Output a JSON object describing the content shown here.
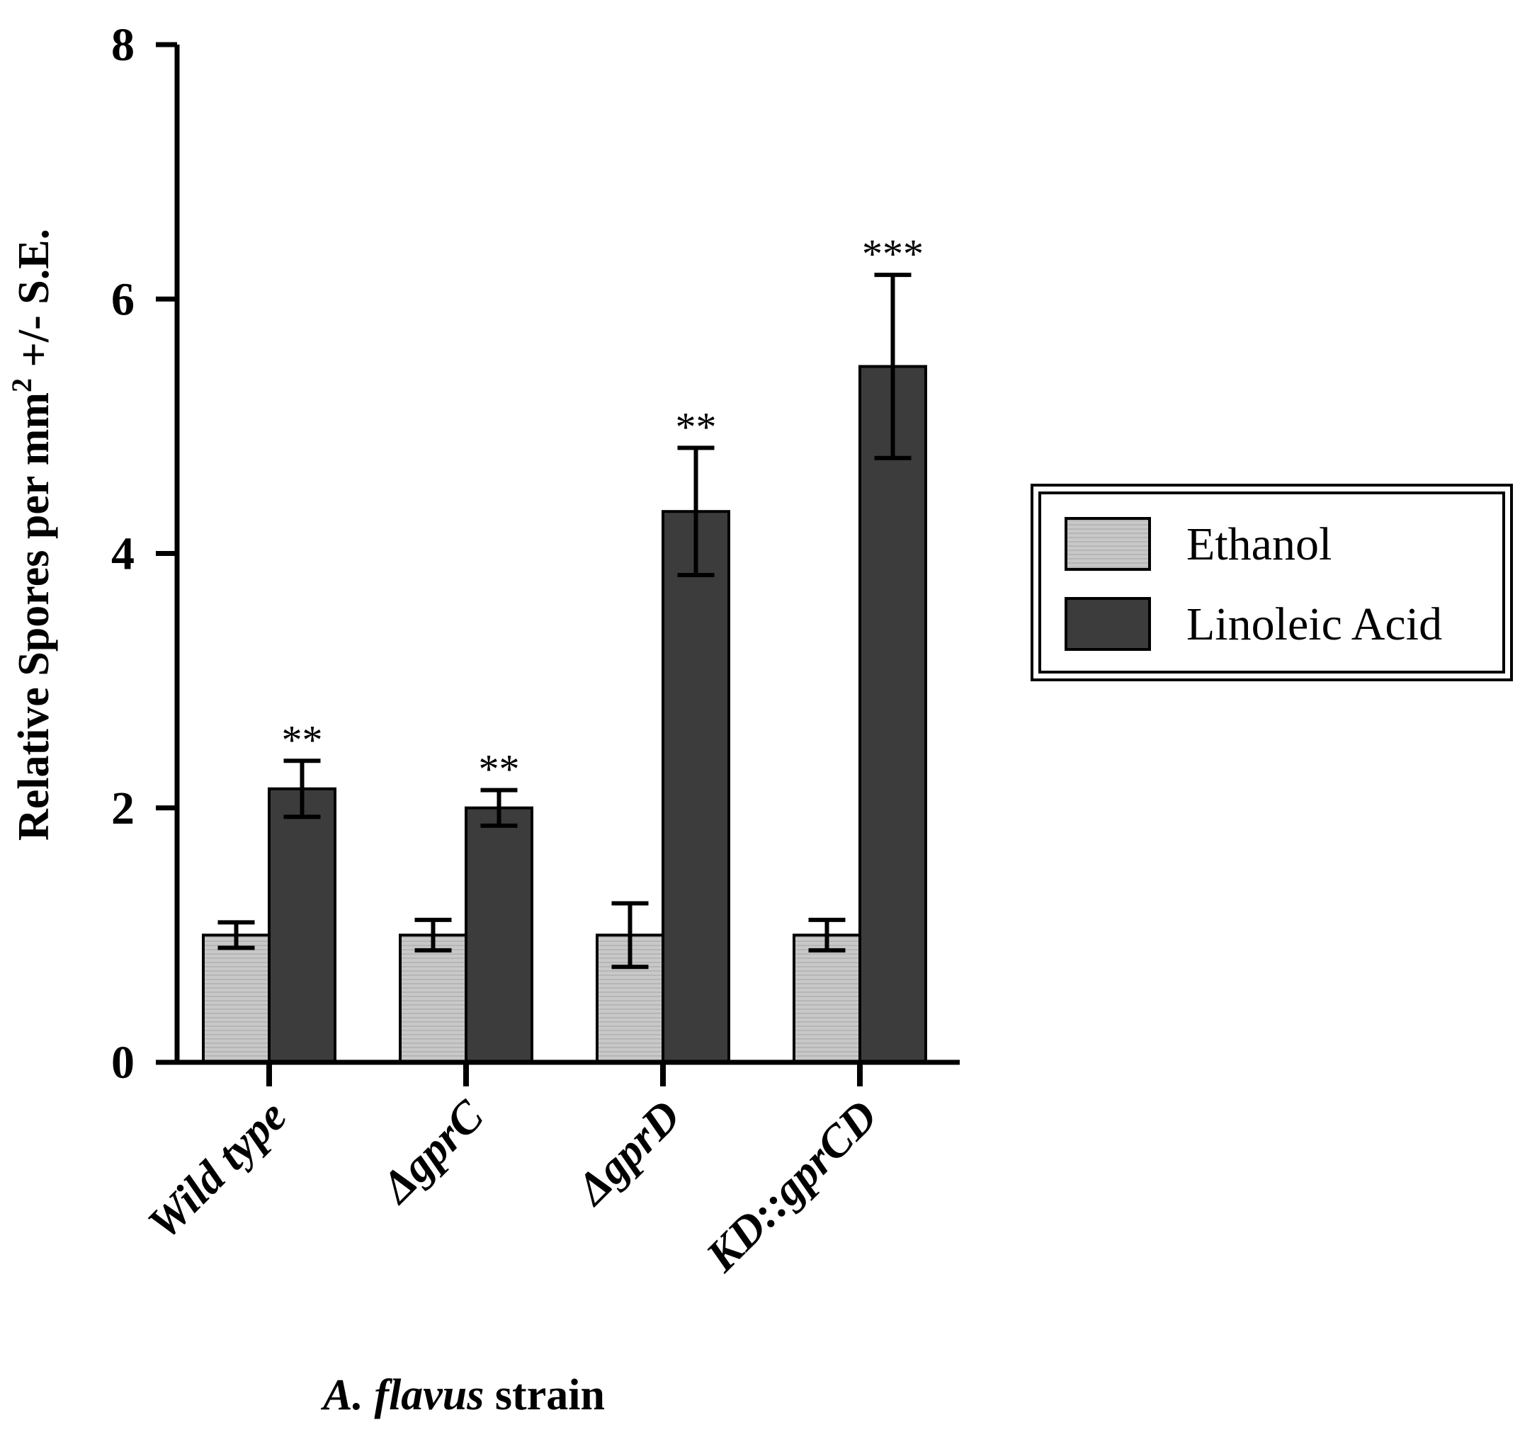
{
  "chart_data": {
    "type": "bar",
    "title": "",
    "xlabel": "strain",
    "xlabel_italic": "A. flavus",
    "ylabel_prefix": "Relative Spores per mm",
    "ylabel_sup": "2",
    "ylabel_suffix": " +/- S.E.",
    "ylim": [
      0,
      8
    ],
    "yticks": [
      "0",
      "2",
      "4",
      "6",
      "8"
    ],
    "categories": [
      "Wild type",
      "ΔgprC",
      "ΔgprD",
      "KD::gprCD"
    ],
    "series": [
      {
        "name": "Ethanol",
        "color": "#c8c8c8",
        "values": [
          1.0,
          1.0,
          1.0,
          1.0
        ],
        "errors": [
          0.1,
          0.12,
          0.25,
          0.12
        ],
        "significance": [
          "",
          "",
          "",
          ""
        ]
      },
      {
        "name": "Linoleic Acid",
        "color": "#3c3c3c",
        "values": [
          2.15,
          2.0,
          4.33,
          5.47
        ],
        "errors": [
          0.22,
          0.14,
          0.5,
          0.72
        ],
        "significance": [
          "**",
          "**",
          "**",
          "***"
        ]
      }
    ],
    "legend": {
      "position": "right"
    },
    "grid": false
  }
}
